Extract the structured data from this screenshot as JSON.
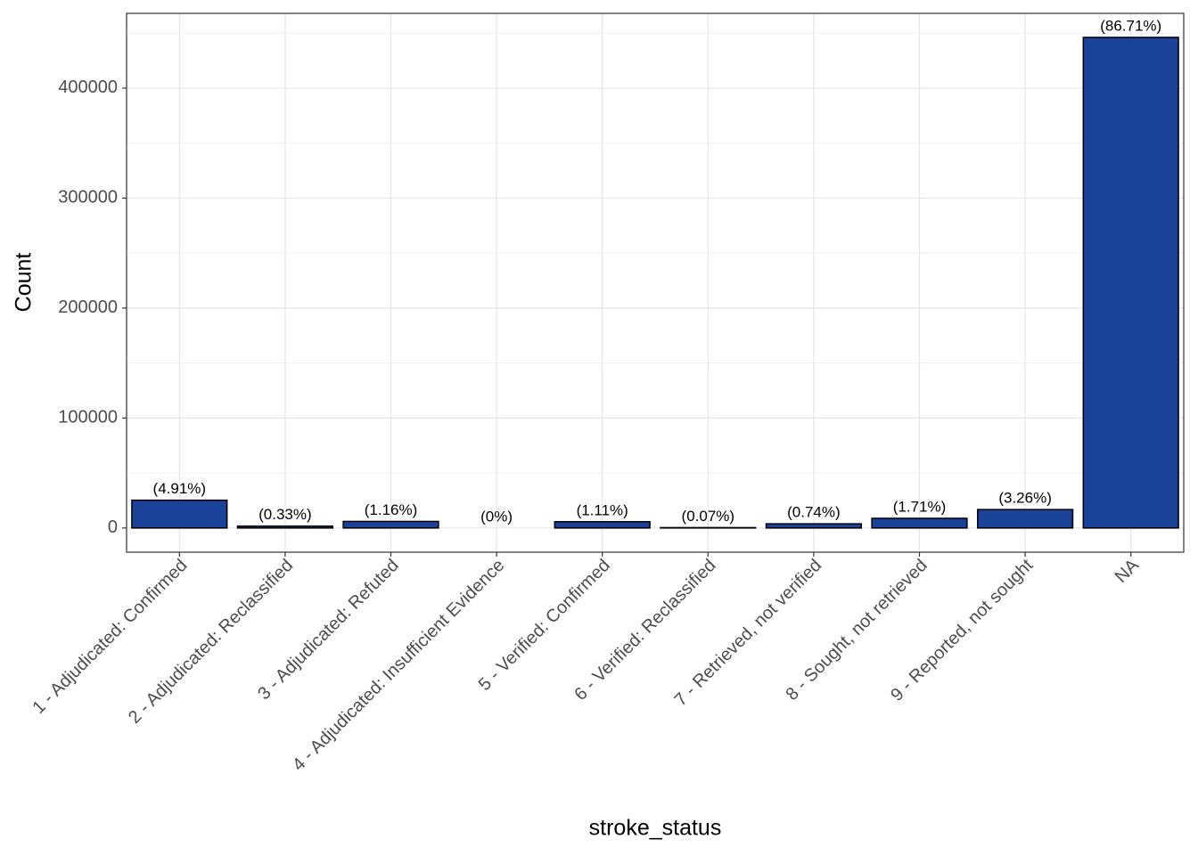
{
  "chart_data": {
    "type": "bar",
    "x_label": "stroke_status",
    "y_label": "Count",
    "categories": [
      "1 - Adjudicated: Confirmed",
      "2 - Adjudicated: Reclassified",
      "3 - Adjudicated: Refuted",
      "4 - Adjudicated: Insufficient Evidence",
      "5 - Verified: Confirmed",
      "6 - Verified: Reclassified",
      "7 - Retrieved, not verified",
      "8 - Sought, not retrieved",
      "9 - Reported, not sought",
      "NA"
    ],
    "values": [
      25264,
      1698,
      5969,
      0,
      5711,
      360,
      3808,
      8799,
      16774,
      446154
    ],
    "value_labels": [
      "(4.91%)",
      "(0.33%)",
      "(1.16%)",
      "(0%)",
      "(1.11%)",
      "(0.07%)",
      "(0.74%)",
      "(1.71%)",
      "(3.26%)",
      "(86.71%)"
    ],
    "color": "#1a4299",
    "ylim": [
      -22000,
      468000
    ],
    "yticks": [
      0,
      100000,
      200000,
      300000,
      400000
    ],
    "grid": true
  }
}
